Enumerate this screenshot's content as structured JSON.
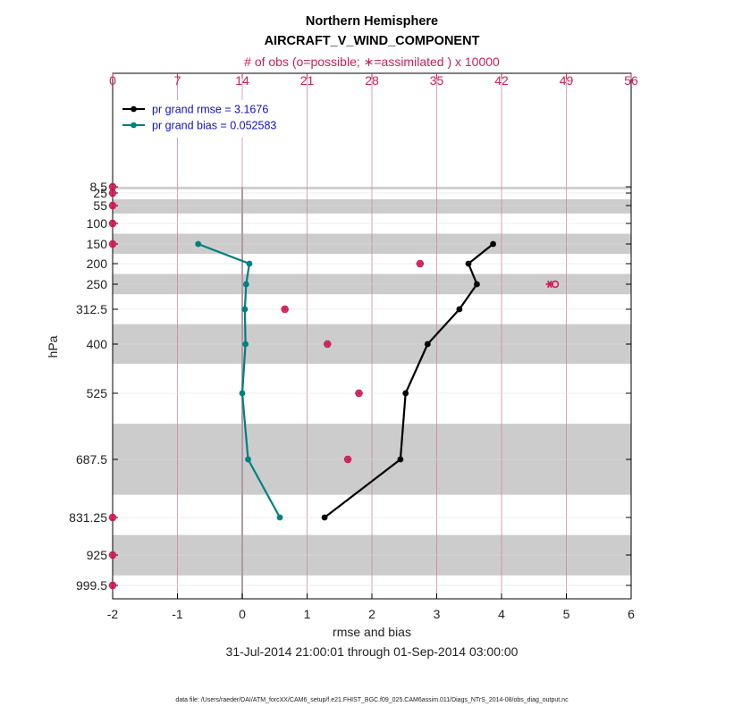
{
  "chart_data": {
    "type": "line",
    "title": "Northern Hemisphere",
    "subtitle": "AIRCRAFT_V_WIND_COMPONENT",
    "top_axis_label": "# of obs (o=possible; ∗=assimilated ) x 10000",
    "xlabel": "rmse and bias",
    "ylabel": "hPa",
    "date_range": "31-Jul-2014 21:00:01 through 01-Sep-2014 03:00:00",
    "footnote": "data file: /Users/raeder/DAI/ATM_forcXX/CAM6_setup/f.e21.FHIST_BGC.f09_025.CAM6assim.011/Diags_NTrS_2014-08/obs_diag_output.nc",
    "xlim": [
      -2,
      6
    ],
    "x_ticks": [
      "-2",
      "-1",
      "0",
      "1",
      "2",
      "3",
      "4",
      "5",
      "6"
    ],
    "top_xlim": [
      0,
      56
    ],
    "top_ticks": [
      "0",
      "7",
      "14",
      "21",
      "28",
      "35",
      "42",
      "49",
      "56"
    ],
    "levels": [
      8.5,
      25,
      55,
      100,
      150,
      200,
      250,
      312.5,
      400,
      525,
      687.5,
      831.25,
      925,
      999.5
    ],
    "level_labels": [
      "8.5",
      "25",
      "55",
      "100",
      "150",
      "200",
      "250",
      "312.5",
      "400",
      "525",
      "687.5",
      "831.25",
      "925",
      "999.5"
    ],
    "series": [
      {
        "name": "rmse",
        "legend": "pr grand rmse = 3.1676",
        "color": "#000000",
        "points": [
          {
            "level": 150,
            "value": 3.87
          },
          {
            "level": 200,
            "value": 3.49
          },
          {
            "level": 250,
            "value": 3.62
          },
          {
            "level": 312.5,
            "value": 3.35
          },
          {
            "level": 400,
            "value": 2.86
          },
          {
            "level": 525,
            "value": 2.52
          },
          {
            "level": 687.5,
            "value": 2.44
          },
          {
            "level": 831.25,
            "value": 1.27
          }
        ]
      },
      {
        "name": "bias",
        "legend": "pr grand bias = 0.052583",
        "color": "#008080",
        "points": [
          {
            "level": 150,
            "value": -0.68
          },
          {
            "level": 200,
            "value": 0.11
          },
          {
            "level": 250,
            "value": 0.06
          },
          {
            "level": 312.5,
            "value": 0.04
          },
          {
            "level": 400,
            "value": 0.05
          },
          {
            "level": 525,
            "value": 0.0
          },
          {
            "level": 687.5,
            "value": 0.09
          },
          {
            "level": 831.25,
            "value": 0.58
          }
        ]
      }
    ],
    "obs_counts": {
      "units": "x 10000",
      "color": "#cc1f5a",
      "points": [
        {
          "level": 8.5,
          "possible": 0,
          "assimilated": 0
        },
        {
          "level": 25,
          "possible": 0,
          "assimilated": 0
        },
        {
          "level": 55,
          "possible": 0,
          "assimilated": 0
        },
        {
          "level": 100,
          "possible": 0,
          "assimilated": 0
        },
        {
          "level": 150,
          "possible": 0,
          "assimilated": 0
        },
        {
          "level": 200,
          "possible": 33.2,
          "assimilated": 33.2
        },
        {
          "level": 250,
          "possible": 47.8,
          "assimilated": 47.2
        },
        {
          "level": 312.5,
          "possible": 18.6,
          "assimilated": 18.6
        },
        {
          "level": 400,
          "possible": 23.2,
          "assimilated": 23.2
        },
        {
          "level": 525,
          "possible": 26.6,
          "assimilated": 26.6
        },
        {
          "level": 687.5,
          "possible": 25.4,
          "assimilated": 25.4
        },
        {
          "level": 831.25,
          "possible": 0,
          "assimilated": 0
        },
        {
          "level": 925,
          "possible": 0,
          "assimilated": 0
        },
        {
          "level": 999.5,
          "possible": 0,
          "assimilated": 0
        }
      ]
    },
    "shaded_bands_hpa": [
      [
        8.5,
        15
      ],
      [
        40,
        75
      ],
      [
        125,
        175
      ],
      [
        225,
        275
      ],
      [
        350,
        450
      ],
      [
        600,
        775
      ],
      [
        875,
        975
      ]
    ],
    "zero_line": 0
  }
}
